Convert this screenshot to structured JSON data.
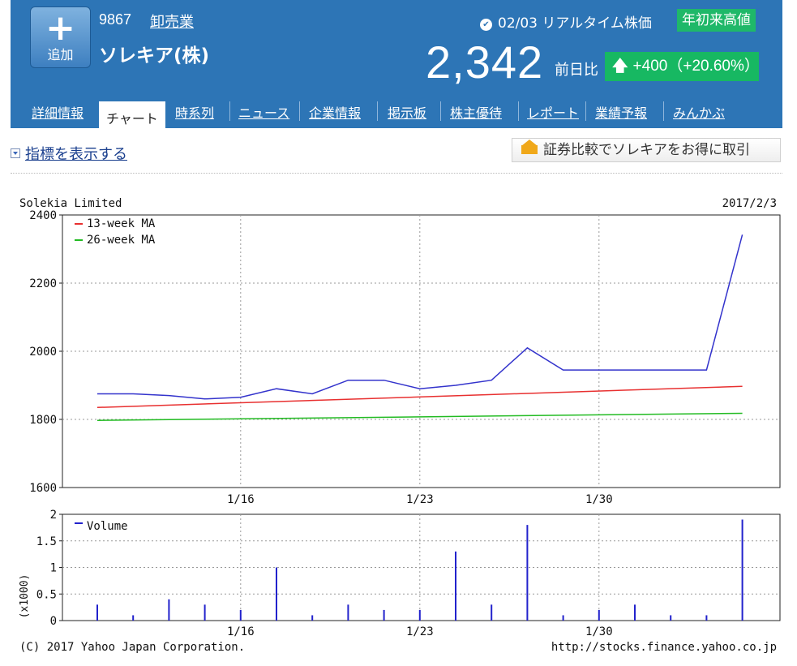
{
  "header": {
    "add_button_label": "追加",
    "stock_code": "9867",
    "industry": "卸売業",
    "company_name": "ソレキア(株)",
    "date": "02/03",
    "realtime_label": "リアルタイム株価",
    "badge": "年初来高値",
    "price": "2,342",
    "prev_label": "前日比",
    "change": "+400（+20.60%）",
    "colors": {
      "bg": "#2d75b6",
      "up": "#17b862"
    }
  },
  "tabs": [
    {
      "label": "詳細情報",
      "active": false
    },
    {
      "label": "チャート",
      "active": true
    },
    {
      "label": "時系列",
      "active": false
    },
    {
      "label": "ニュース",
      "active": false
    },
    {
      "label": "企業情報",
      "active": false
    },
    {
      "label": "掲示板",
      "active": false
    },
    {
      "label": "株主優待",
      "active": false
    },
    {
      "label": "レポート",
      "active": false
    },
    {
      "label": "業績予報",
      "active": false
    },
    {
      "label": "みんかぶ",
      "active": false
    }
  ],
  "toolbar": {
    "indicator_toggle": "指標を表示する",
    "compare_button": "証券比較でソレキアをお得に取引"
  },
  "chart_data": [
    {
      "type": "line",
      "title": "Solekia Limited",
      "date_label": "2017/2/3",
      "ylim": [
        1600,
        2400
      ],
      "yticks": [
        "2400",
        "2200",
        "2000",
        "1800",
        "1600"
      ],
      "xticks": [
        "1/16",
        "1/23",
        "1/30"
      ],
      "grid": true,
      "legend_position": "top-left",
      "series": [
        {
          "name": "",
          "color": "#3333cc",
          "x": [
            "1/10",
            "1/11",
            "1/12",
            "1/13",
            "1/16",
            "1/17",
            "1/18",
            "1/19",
            "1/20",
            "1/23",
            "1/24",
            "1/25",
            "1/26",
            "1/27",
            "1/30",
            "1/31",
            "2/1",
            "2/2",
            "2/3"
          ],
          "values": [
            1875,
            1875,
            1870,
            1860,
            1865,
            1890,
            1875,
            1915,
            1915,
            1890,
            1900,
            1915,
            2010,
            1945,
            1945,
            1945,
            1945,
            1945,
            2342
          ]
        },
        {
          "name": "13-week MA",
          "color": "#e83030",
          "x": [
            "1/10",
            "2/3"
          ],
          "values": [
            1835,
            1897
          ]
        },
        {
          "name": "26-week MA",
          "color": "#22bb22",
          "x": [
            "1/10",
            "2/3"
          ],
          "values": [
            1797,
            1818
          ]
        }
      ]
    },
    {
      "type": "bar",
      "ylabel": "(x1000)",
      "ylim": [
        0,
        2
      ],
      "yticks": [
        "2",
        "1.5",
        "1",
        "0.5",
        "0"
      ],
      "xticks": [
        "1/16",
        "1/23",
        "1/30"
      ],
      "grid": true,
      "legend_position": "top-left",
      "series": [
        {
          "name": "Volume",
          "color": "#2222cc",
          "x": [
            "1/10",
            "1/11",
            "1/12",
            "1/13",
            "1/16",
            "1/17",
            "1/18",
            "1/19",
            "1/20",
            "1/23",
            "1/24",
            "1/25",
            "1/26",
            "1/27",
            "1/30",
            "1/31",
            "2/1",
            "2/2",
            "2/3"
          ],
          "values": [
            0.3,
            0.1,
            0.4,
            0.3,
            0.2,
            1.0,
            0.1,
            0.3,
            0.2,
            0.2,
            1.3,
            0.3,
            1.8,
            0.1,
            0.2,
            0.3,
            0.1,
            0.1,
            1.9
          ]
        }
      ]
    }
  ],
  "footer": {
    "copyright": "(C) 2017 Yahoo Japan Corporation.",
    "url": "http://stocks.finance.yahoo.co.jp"
  }
}
